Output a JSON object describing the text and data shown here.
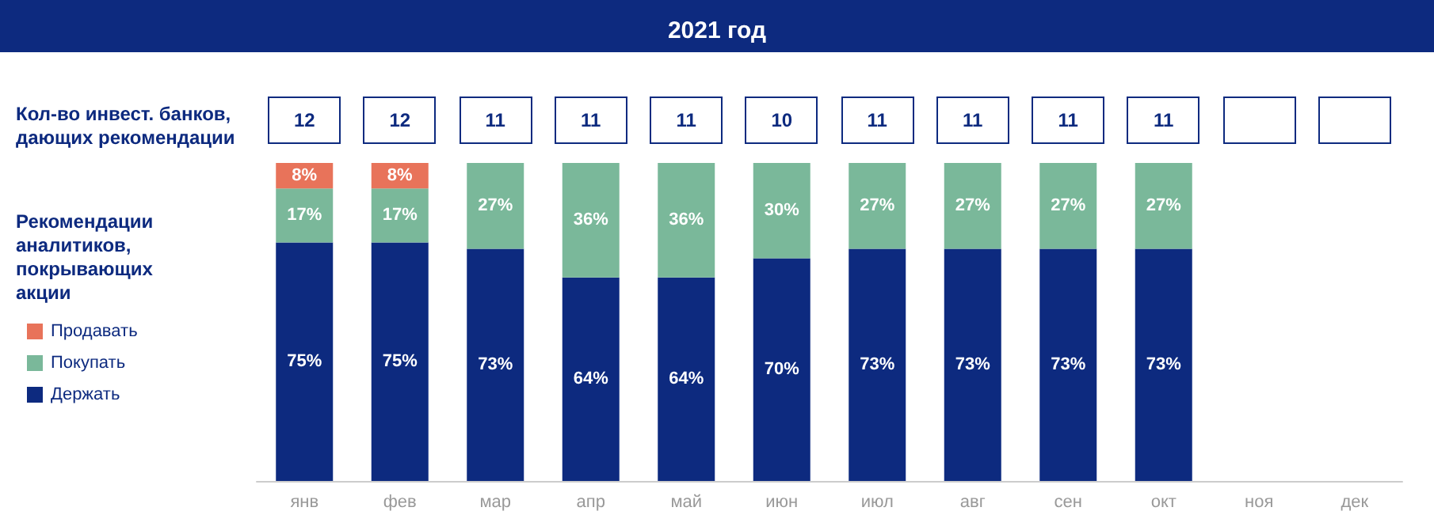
{
  "chart_data": {
    "type": "bar",
    "title": "2021 год",
    "legend_title": "Рекомендации аналитиков, покрывающих акции",
    "stacked": true,
    "legend": "left",
    "categories": [
      "янв",
      "фев",
      "мар",
      "апр",
      "май",
      "июн",
      "июл",
      "авг",
      "сен",
      "окт",
      "ноя",
      "дек"
    ],
    "series": [
      {
        "name": "Держать",
        "color": "#0d2a7f",
        "values": [
          75,
          75,
          73,
          64,
          64,
          70,
          73,
          73,
          73,
          73,
          null,
          null
        ],
        "value_labels": [
          "75%",
          "75%",
          "73%",
          "64%",
          "64%",
          "70%",
          "73%",
          "73%",
          "73%",
          "73%",
          null,
          null
        ]
      },
      {
        "name": "Покупать",
        "color": "#7ab89a",
        "values": [
          17,
          17,
          27,
          36,
          36,
          30,
          27,
          27,
          27,
          27,
          null,
          null
        ],
        "value_labels": [
          "17%",
          "17%",
          "27%",
          "36%",
          "36%",
          "30%",
          "27%",
          "27%",
          "27%",
          "27%",
          null,
          null
        ]
      },
      {
        "name": "Продавать",
        "color": "#e8735a",
        "values": [
          8,
          8,
          null,
          null,
          null,
          null,
          null,
          null,
          null,
          null,
          null,
          null
        ],
        "value_labels": [
          "8%",
          "8%",
          null,
          null,
          null,
          null,
          null,
          null,
          null,
          null,
          null,
          null
        ]
      }
    ],
    "annotations": [
      "Кол-во инвест. банков, дающих рекомендации",
      "12",
      "12",
      "11",
      "11",
      "11",
      "10",
      "11",
      "11",
      "11",
      "11"
    ]
  }
}
